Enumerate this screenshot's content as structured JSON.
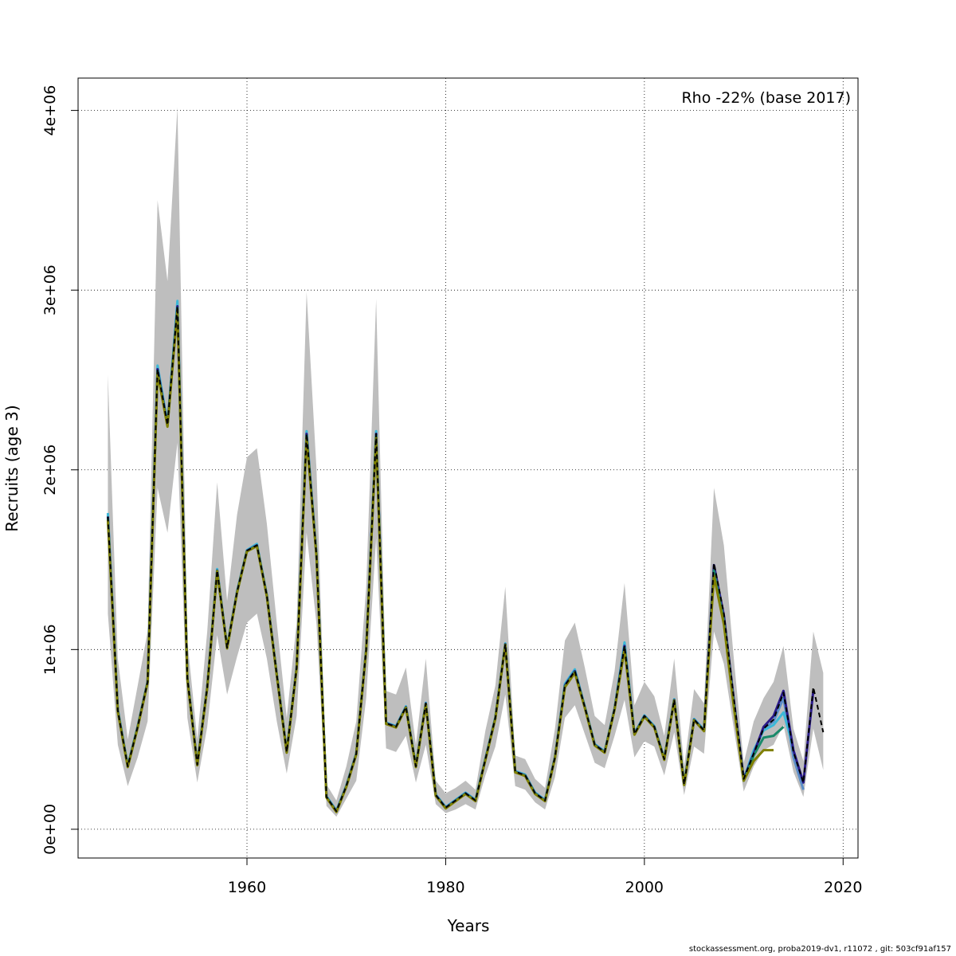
{
  "chart_data": {
    "type": "line",
    "xlabel": "Years",
    "ylabel": "Recruits (age 3)",
    "xlim": [
      1943,
      2021.5
    ],
    "ylim": [
      -160000,
      4180000
    ],
    "x_ticks": [
      1960,
      1980,
      2000,
      2020
    ],
    "y_ticks": [
      0,
      1000000,
      2000000,
      3000000,
      4000000
    ],
    "y_tick_labels": [
      "0e+00",
      "1e+06",
      "2e+06",
      "3e+06",
      "4e+06"
    ],
    "grid": true,
    "legend": {
      "text": "Rho -22% (base 2017)",
      "position": "top-right"
    },
    "colors": {
      "band": "#bebebe",
      "base": "#000000",
      "peel1": "#2a1a8a",
      "peel2": "#5b8ec8",
      "peel3": "#3cb8d8",
      "peel4": "#1a8a6a",
      "peel5": "#808000"
    },
    "confidence_band": {
      "x": [
        1946,
        1947,
        1948,
        1949,
        1950,
        1951,
        1952,
        1953,
        1954,
        1955,
        1956,
        1957,
        1958,
        1959,
        1960,
        1961,
        1962,
        1963,
        1964,
        1965,
        1966,
        1967,
        1968,
        1969,
        1970,
        1971,
        1972,
        1973,
        1974,
        1975,
        1976,
        1977,
        1978,
        1979,
        1980,
        1981,
        1982,
        1983,
        1984,
        1985,
        1986,
        1987,
        1988,
        1989,
        1990,
        1991,
        1992,
        1993,
        1994,
        1995,
        1996,
        1997,
        1998,
        1999,
        2000,
        2001,
        2002,
        2003,
        2004,
        2005,
        2006,
        2007,
        2008,
        2009,
        2010,
        2011,
        2012,
        2013,
        2014,
        2015,
        2016,
        2017,
        2018
      ],
      "upper": [
        2530000,
        950000,
        500000,
        800000,
        1100000,
        3500000,
        3050000,
        4020000,
        1050000,
        500000,
        1100000,
        1930000,
        1270000,
        1750000,
        2070000,
        2120000,
        1700000,
        1150000,
        620000,
        1150000,
        2990000,
        2000000,
        250000,
        160000,
        350000,
        600000,
        1350000,
        2950000,
        770000,
        750000,
        900000,
        470000,
        950000,
        270000,
        200000,
        230000,
        270000,
        220000,
        550000,
        800000,
        1350000,
        410000,
        390000,
        280000,
        230000,
        560000,
        1050000,
        1150000,
        900000,
        630000,
        580000,
        880000,
        1370000,
        690000,
        820000,
        740000,
        520000,
        950000,
        350000,
        780000,
        700000,
        1900000,
        1580000,
        950000,
        370000,
        600000,
        730000,
        820000,
        1020000,
        560000,
        380000,
        1100000,
        870000
      ],
      "lower": [
        1200000,
        470000,
        240000,
        400000,
        600000,
        1900000,
        1650000,
        2150000,
        620000,
        260000,
        570000,
        1080000,
        750000,
        960000,
        1150000,
        1200000,
        950000,
        600000,
        310000,
        630000,
        1650000,
        1140000,
        130000,
        70000,
        170000,
        270000,
        730000,
        1620000,
        450000,
        430000,
        520000,
        260000,
        470000,
        140000,
        90000,
        110000,
        140000,
        110000,
        300000,
        460000,
        750000,
        240000,
        220000,
        150000,
        110000,
        290000,
        620000,
        690000,
        530000,
        370000,
        340000,
        520000,
        720000,
        400000,
        490000,
        460000,
        300000,
        540000,
        190000,
        460000,
        420000,
        1100000,
        920000,
        560000,
        210000,
        350000,
        440000,
        470000,
        580000,
        320000,
        180000,
        560000,
        330000
      ]
    },
    "series": [
      {
        "x": [
          1946,
          1947,
          1948,
          1949,
          1950,
          1951,
          1952,
          1953,
          1954,
          1955,
          1956,
          1957,
          1958,
          1959,
          1960,
          1961,
          1962,
          1963,
          1964,
          1965,
          1966,
          1967,
          1968,
          1969,
          1970,
          1971,
          1972,
          1973,
          1974,
          1975,
          1976,
          1977,
          1978,
          1979,
          1980,
          1981,
          1982,
          1983,
          1984,
          1985,
          1986,
          1987,
          1988,
          1989,
          1990,
          1991,
          1992,
          1993,
          1994,
          1995,
          1996,
          1997,
          1998,
          1999,
          2000,
          2001,
          2002,
          2003,
          2004,
          2005,
          2006,
          2007,
          2008,
          2009,
          2010,
          2011,
          2012,
          2013,
          2014,
          2015,
          2016,
          2017,
          2018
        ],
        "y": [
          1740000,
          660000,
          350000,
          570000,
          820000,
          2560000,
          2250000,
          2910000,
          840000,
          360000,
          790000,
          1440000,
          1010000,
          1320000,
          1550000,
          1580000,
          1300000,
          860000,
          430000,
          900000,
          2200000,
          1520000,
          180000,
          100000,
          240000,
          420000,
          1000000,
          2200000,
          590000,
          570000,
          680000,
          350000,
          700000,
          190000,
          120000,
          160000,
          200000,
          160000,
          390000,
          620000,
          1030000,
          320000,
          300000,
          200000,
          160000,
          400000,
          800000,
          880000,
          680000,
          470000,
          430000,
          670000,
          1020000,
          530000,
          630000,
          570000,
          390000,
          720000,
          250000,
          610000,
          550000,
          1480000,
          1200000,
          730000,
          280000,
          420000,
          560000,
          610000,
          760000,
          430000,
          260000,
          790000,
          540000
        ],
        "color": "#000000",
        "dash": "6,4"
      },
      {
        "x": [
          1946,
          1947,
          1948,
          1949,
          1950,
          1951,
          1952,
          1953,
          1954,
          1955,
          1956,
          1957,
          1958,
          1959,
          1960,
          1961,
          1962,
          1963,
          1964,
          1965,
          1966,
          1967,
          1968,
          1969,
          1970,
          1971,
          1972,
          1973,
          1974,
          1975,
          1976,
          1977,
          1978,
          1979,
          1980,
          1981,
          1982,
          1983,
          1984,
          1985,
          1986,
          1987,
          1988,
          1989,
          1990,
          1991,
          1992,
          1993,
          1994,
          1995,
          1996,
          1997,
          1998,
          1999,
          2000,
          2001,
          2002,
          2003,
          2004,
          2005,
          2006,
          2007,
          2008,
          2009,
          2010,
          2011,
          2012,
          2013,
          2014,
          2015,
          2016,
          2017
        ],
        "y": [
          1740000,
          660000,
          350000,
          570000,
          820000,
          2560000,
          2250000,
          2910000,
          840000,
          360000,
          790000,
          1440000,
          1010000,
          1320000,
          1550000,
          1580000,
          1300000,
          860000,
          430000,
          900000,
          2200000,
          1520000,
          180000,
          100000,
          240000,
          420000,
          1000000,
          2200000,
          590000,
          570000,
          680000,
          350000,
          700000,
          190000,
          120000,
          160000,
          200000,
          160000,
          390000,
          620000,
          1030000,
          320000,
          300000,
          200000,
          160000,
          400000,
          800000,
          880000,
          680000,
          470000,
          430000,
          670000,
          1020000,
          530000,
          630000,
          570000,
          390000,
          720000,
          250000,
          610000,
          550000,
          1470000,
          1190000,
          720000,
          280000,
          420000,
          570000,
          630000,
          770000,
          440000,
          260000,
          770000
        ],
        "color": "#2a1a8a",
        "dash": ""
      },
      {
        "x": [
          1946,
          1947,
          1948,
          1949,
          1950,
          1951,
          1952,
          1953,
          1954,
          1955,
          1956,
          1957,
          1958,
          1959,
          1960,
          1961,
          1962,
          1963,
          1964,
          1965,
          1966,
          1967,
          1968,
          1969,
          1970,
          1971,
          1972,
          1973,
          1974,
          1975,
          1976,
          1977,
          1978,
          1979,
          1980,
          1981,
          1982,
          1983,
          1984,
          1985,
          1986,
          1987,
          1988,
          1989,
          1990,
          1991,
          1992,
          1993,
          1994,
          1995,
          1996,
          1997,
          1998,
          1999,
          2000,
          2001,
          2002,
          2003,
          2004,
          2005,
          2006,
          2007,
          2008,
          2009,
          2010,
          2011,
          2012,
          2013,
          2014,
          2015,
          2016
        ],
        "y": [
          1750000,
          665000,
          352000,
          572000,
          822000,
          2570000,
          2255000,
          2920000,
          842000,
          362000,
          792000,
          1445000,
          1012000,
          1322000,
          1552000,
          1585000,
          1302000,
          862000,
          432000,
          902000,
          2210000,
          1525000,
          182000,
          102000,
          242000,
          422000,
          1002000,
          2210000,
          592000,
          572000,
          682000,
          352000,
          702000,
          192000,
          122000,
          162000,
          202000,
          162000,
          392000,
          622000,
          1032000,
          322000,
          302000,
          202000,
          162000,
          402000,
          805000,
          885000,
          682000,
          472000,
          432000,
          672000,
          1030000,
          532000,
          632000,
          572000,
          392000,
          722000,
          252000,
          612000,
          552000,
          1460000,
          1180000,
          710000,
          280000,
          420000,
          560000,
          600000,
          730000,
          400000,
          220000
        ],
        "color": "#5b8ec8",
        "dash": ""
      },
      {
        "x": [
          1946,
          1947,
          1948,
          1949,
          1950,
          1951,
          1952,
          1953,
          1954,
          1955,
          1956,
          1957,
          1958,
          1959,
          1960,
          1961,
          1962,
          1963,
          1964,
          1965,
          1966,
          1967,
          1968,
          1969,
          1970,
          1971,
          1972,
          1973,
          1974,
          1975,
          1976,
          1977,
          1978,
          1979,
          1980,
          1981,
          1982,
          1983,
          1984,
          1985,
          1986,
          1987,
          1988,
          1989,
          1990,
          1991,
          1992,
          1993,
          1994,
          1995,
          1996,
          1997,
          1998,
          1999,
          2000,
          2001,
          2002,
          2003,
          2004,
          2005,
          2006,
          2007,
          2008,
          2009,
          2010,
          2011,
          2012,
          2013,
          2014,
          2015
        ],
        "y": [
          1760000,
          668000,
          354000,
          574000,
          824000,
          2580000,
          2260000,
          2940000,
          844000,
          364000,
          794000,
          1448000,
          1014000,
          1324000,
          1554000,
          1588000,
          1304000,
          864000,
          434000,
          904000,
          2215000,
          1528000,
          184000,
          104000,
          244000,
          424000,
          1004000,
          2215000,
          594000,
          574000,
          684000,
          354000,
          704000,
          194000,
          124000,
          164000,
          204000,
          164000,
          394000,
          624000,
          1034000,
          324000,
          304000,
          204000,
          164000,
          404000,
          810000,
          890000,
          684000,
          474000,
          434000,
          674000,
          1040000,
          534000,
          634000,
          574000,
          394000,
          724000,
          254000,
          614000,
          554000,
          1440000,
          1170000,
          700000,
          280000,
          440000,
          550000,
          580000,
          650000,
          450000
        ],
        "color": "#3cb8d8",
        "dash": ""
      },
      {
        "x": [
          1946,
          1947,
          1948,
          1949,
          1950,
          1951,
          1952,
          1953,
          1954,
          1955,
          1956,
          1957,
          1958,
          1959,
          1960,
          1961,
          1962,
          1963,
          1964,
          1965,
          1966,
          1967,
          1968,
          1969,
          1970,
          1971,
          1972,
          1973,
          1974,
          1975,
          1976,
          1977,
          1978,
          1979,
          1980,
          1981,
          1982,
          1983,
          1984,
          1985,
          1986,
          1987,
          1988,
          1989,
          1990,
          1991,
          1992,
          1993,
          1994,
          1995,
          1996,
          1997,
          1998,
          1999,
          2000,
          2001,
          2002,
          2003,
          2004,
          2005,
          2006,
          2007,
          2008,
          2009,
          2010,
          2011,
          2012,
          2013,
          2014
        ],
        "y": [
          1730000,
          658000,
          348000,
          568000,
          818000,
          2550000,
          2245000,
          2900000,
          838000,
          358000,
          788000,
          1438000,
          1008000,
          1318000,
          1548000,
          1578000,
          1298000,
          858000,
          428000,
          898000,
          2190000,
          1518000,
          178000,
          98000,
          238000,
          418000,
          998000,
          2190000,
          588000,
          568000,
          678000,
          348000,
          698000,
          188000,
          118000,
          158000,
          198000,
          158000,
          388000,
          618000,
          1028000,
          318000,
          298000,
          198000,
          158000,
          398000,
          795000,
          875000,
          678000,
          468000,
          428000,
          668000,
          1010000,
          528000,
          628000,
          568000,
          388000,
          718000,
          248000,
          608000,
          548000,
          1440000,
          1160000,
          700000,
          270000,
          410000,
          510000,
          520000,
          570000
        ],
        "color": "#1a8a6a",
        "dash": ""
      },
      {
        "x": [
          1946,
          1947,
          1948,
          1949,
          1950,
          1951,
          1952,
          1953,
          1954,
          1955,
          1956,
          1957,
          1958,
          1959,
          1960,
          1961,
          1962,
          1963,
          1964,
          1965,
          1966,
          1967,
          1968,
          1969,
          1970,
          1971,
          1972,
          1973,
          1974,
          1975,
          1976,
          1977,
          1978,
          1979,
          1980,
          1981,
          1982,
          1983,
          1984,
          1985,
          1986,
          1987,
          1988,
          1989,
          1990,
          1991,
          1992,
          1993,
          1994,
          1995,
          1996,
          1997,
          1998,
          1999,
          2000,
          2001,
          2002,
          2003,
          2004,
          2005,
          2006,
          2007,
          2008,
          2009,
          2010,
          2011,
          2012,
          2013
        ],
        "y": [
          1720000,
          655000,
          346000,
          566000,
          816000,
          2540000,
          2240000,
          2890000,
          836000,
          356000,
          786000,
          1436000,
          1006000,
          1316000,
          1546000,
          1576000,
          1296000,
          856000,
          426000,
          896000,
          2180000,
          1514000,
          176000,
          96000,
          236000,
          416000,
          996000,
          2180000,
          586000,
          566000,
          676000,
          346000,
          696000,
          186000,
          116000,
          156000,
          196000,
          156000,
          386000,
          616000,
          1026000,
          316000,
          296000,
          196000,
          156000,
          396000,
          790000,
          870000,
          676000,
          466000,
          426000,
          666000,
          1000000,
          526000,
          626000,
          566000,
          386000,
          716000,
          246000,
          606000,
          546000,
          1410000,
          1140000,
          680000,
          270000,
          380000,
          440000,
          440000
        ],
        "color": "#808000",
        "dash": ""
      }
    ]
  },
  "footer": "stockassessment.org, proba2019-dv1, r11072 , git: 503cf91af157"
}
